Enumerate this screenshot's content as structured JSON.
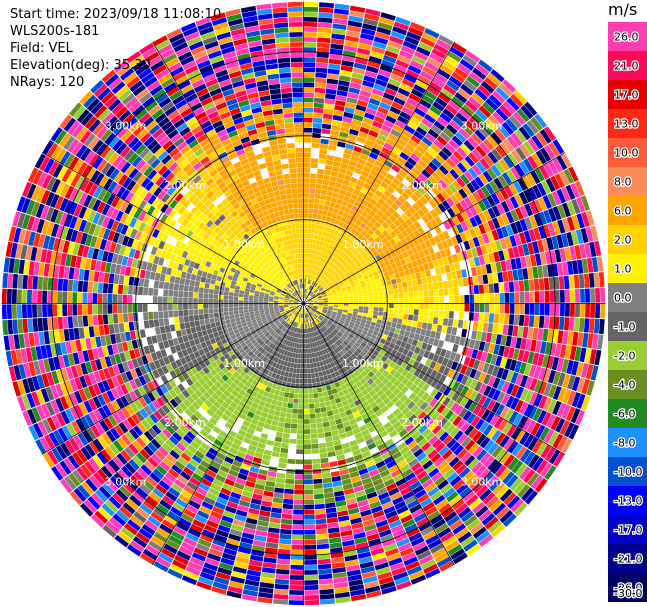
{
  "header": {
    "start_time": "Start time: 2023/09/18 11:08:10",
    "instrument": "WLS200s-181",
    "field": "Field: VEL",
    "elevation": "Elevation(deg): 35.30",
    "nrays": "NRays: 120"
  },
  "chart_data": {
    "type": "heatmap",
    "projection": "polar-ppi",
    "field": "VEL",
    "unit": "m/s",
    "elevation_deg": 35.3,
    "n_rays": 120,
    "range_ring_labels": [
      "1.00km",
      "2.00km",
      "3.00km"
    ],
    "range_rings_km": [
      1,
      2,
      3
    ],
    "max_range_km": 3.6,
    "grid": true,
    "colorbar": {
      "unit": "m/s",
      "levels": [
        26.0,
        21.0,
        17.0,
        13.0,
        10.0,
        8.0,
        6.0,
        2.0,
        1.0,
        0.0,
        -1.0,
        -2.0,
        -4.0,
        -6.0,
        -8.0,
        -10.0,
        -13.0,
        -17.0,
        -21.0,
        -26.0,
        -30.0
      ],
      "tick_labels": [
        "26.0",
        "21.0",
        "17.0",
        "13.0",
        "10.0",
        "8.0",
        "6.0",
        "2.0",
        "1.0",
        "0.0",
        "-1.0",
        "-2.0",
        "-4.0",
        "-6.0",
        "-8.0",
        "-10.0",
        "-13.0",
        "-17.0",
        "-21.0",
        "-26.0",
        "-30.0"
      ],
      "colors": [
        "#ff3cb4",
        "#ff0a5a",
        "#e60000",
        "#ff2814",
        "#ff5a3c",
        "#fa8c5a",
        "#ffa500",
        "#ffd200",
        "#fff000",
        "#808080",
        "#646464",
        "#9acd32",
        "#6b8e23",
        "#228b22",
        "#1e90ff",
        "#0050d0",
        "#0000ff",
        "#0000c8",
        "#00008b",
        "#000064"
      ]
    }
  }
}
